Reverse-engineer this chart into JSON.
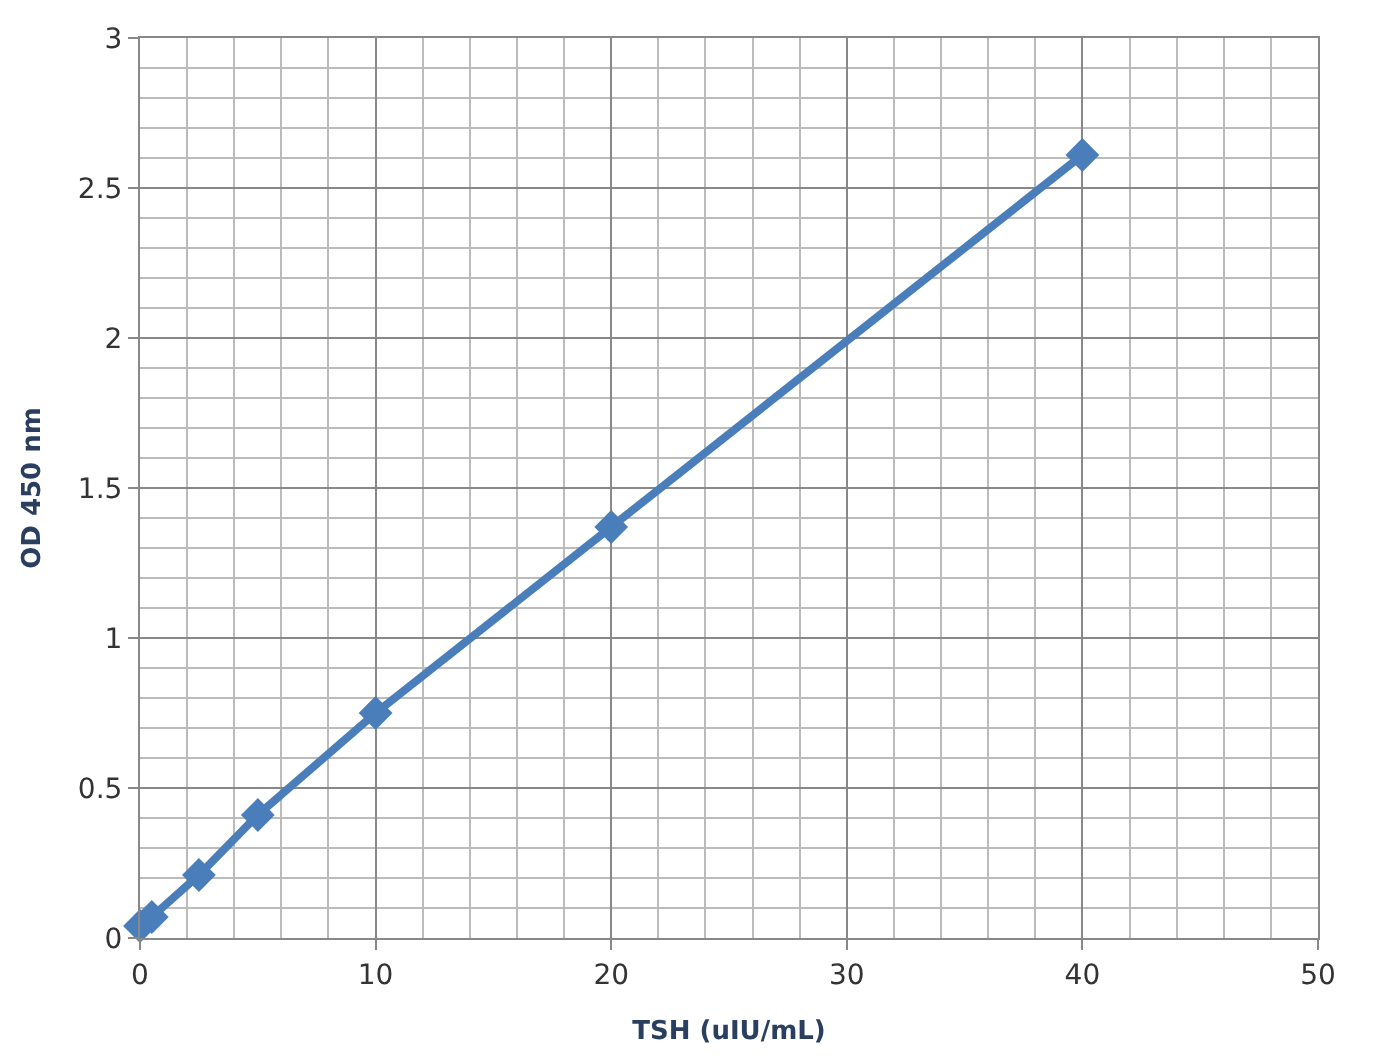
{
  "chart_data": {
    "type": "line",
    "xlabel": "TSH (uIU/mL)",
    "ylabel": "OD 450 nm",
    "x": [
      0,
      0.5,
      2.5,
      5,
      10,
      20,
      40
    ],
    "series": [
      {
        "color": "#4a7ebb",
        "values": [
          0.04,
          0.07,
          0.21,
          0.41,
          0.75,
          1.37,
          2.61
        ]
      }
    ],
    "xlim": [
      0,
      50
    ],
    "xticks": [
      0,
      10,
      20,
      30,
      40,
      50
    ],
    "ylim": [
      0,
      3
    ],
    "yticks": [
      0,
      0.5,
      1,
      1.5,
      2,
      2.5,
      3
    ],
    "grid": true,
    "marker": "diamond",
    "line_style": "solid"
  }
}
